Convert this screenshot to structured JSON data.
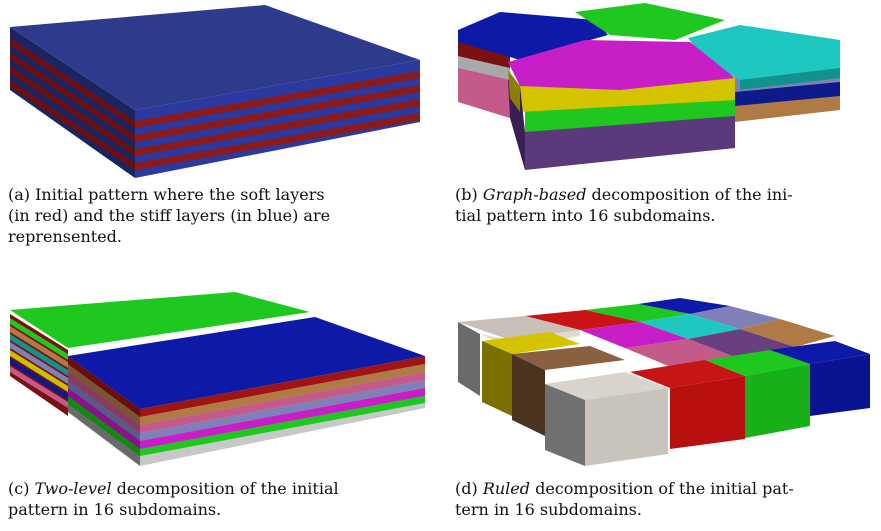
{
  "figure": {
    "subfigures": [
      {
        "id": "a",
        "label": "(a)",
        "caption_parts": [
          {
            "text": " Initial pattern where the soft layers (in red) and the stiff layers (in blue) are reprensented.",
            "italic": false
          }
        ],
        "caption_lines": [
          "(a) Initial pattern where the soft layers",
          "(in red) and the stiff layers (in blue) are",
          "reprensented."
        ]
      },
      {
        "id": "b",
        "label": "(b)",
        "caption_lines_html": [
          {
            "italic": "Graph-based",
            "rest": " decomposition of the ini-"
          },
          {
            "italic": "",
            "rest": "tial pattern into 16 subdomains."
          }
        ]
      },
      {
        "id": "c",
        "label": "(c)",
        "caption_lines_html": [
          {
            "italic": "Two-level",
            "rest": " decomposition of the initial"
          },
          {
            "italic": "",
            "rest": "pattern in 16 subdomains."
          }
        ]
      },
      {
        "id": "d",
        "label": "(d)",
        "caption_lines_html": [
          {
            "italic": "Ruled",
            "rest": " decomposition of the initial pat-"
          },
          {
            "italic": "",
            "rest": "tern in 16 subdomains."
          }
        ]
      }
    ]
  },
  "colors": {
    "stiff_blue": "#2e3a8c",
    "soft_red": "#8b1a1a"
  }
}
